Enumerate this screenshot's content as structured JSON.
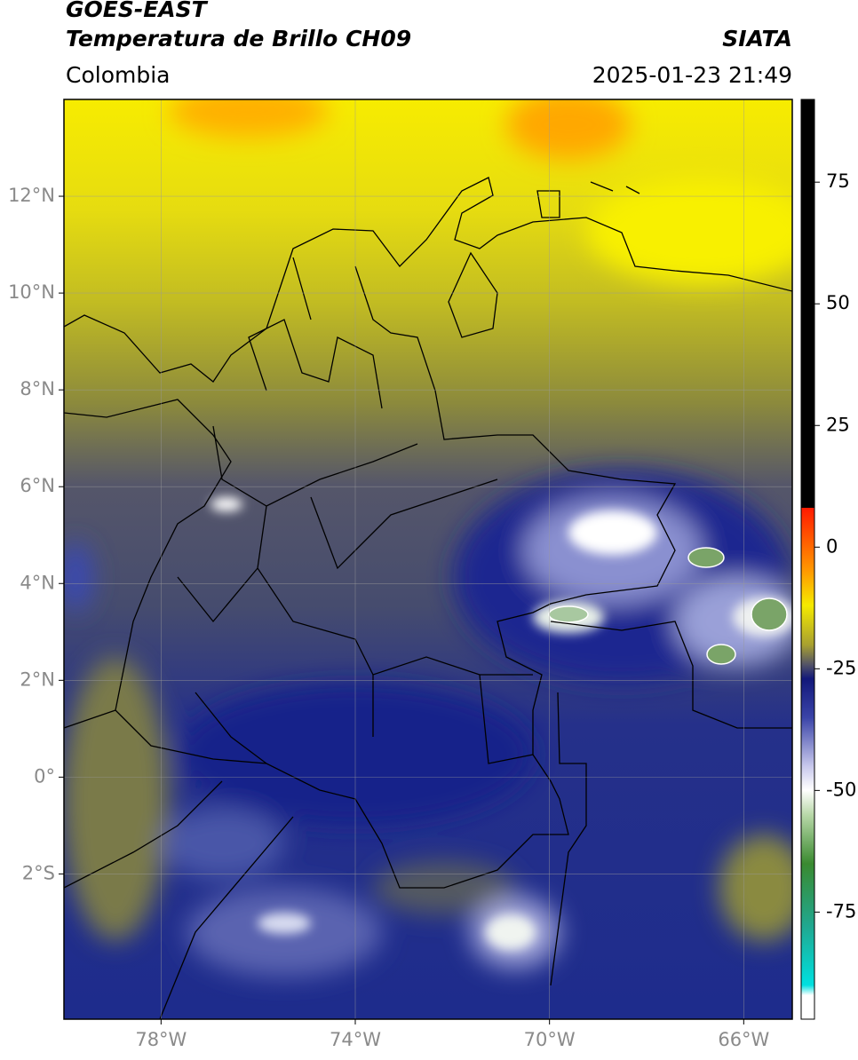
{
  "header": {
    "title": "GOES-EAST",
    "subtitle": "Temperatura de Brillo CH09",
    "source": "SIATA",
    "region": "Colombia",
    "datetime": "2025-01-23 21:49"
  },
  "map": {
    "lonlim": [
      -80,
      -65
    ],
    "latlim": [
      -5,
      14
    ],
    "lon_ticks": [
      {
        "value": -78,
        "label": "78°W"
      },
      {
        "value": -74,
        "label": "74°W"
      },
      {
        "value": -70,
        "label": "70°W"
      },
      {
        "value": -66,
        "label": "66°W"
      }
    ],
    "lat_ticks": [
      {
        "value": 12,
        "label": "12°N"
      },
      {
        "value": 10,
        "label": "10°N"
      },
      {
        "value": 8,
        "label": "8°N"
      },
      {
        "value": 6,
        "label": "6°N"
      },
      {
        "value": 4,
        "label": "4°N"
      },
      {
        "value": 2,
        "label": "2°N"
      },
      {
        "value": 0,
        "label": "0°"
      },
      {
        "value": -2,
        "label": "2°S"
      }
    ]
  },
  "colorbar": {
    "lim": [
      -97,
      92
    ],
    "ticks": [
      75,
      50,
      25,
      0,
      -25,
      -50,
      -75
    ]
  }
}
